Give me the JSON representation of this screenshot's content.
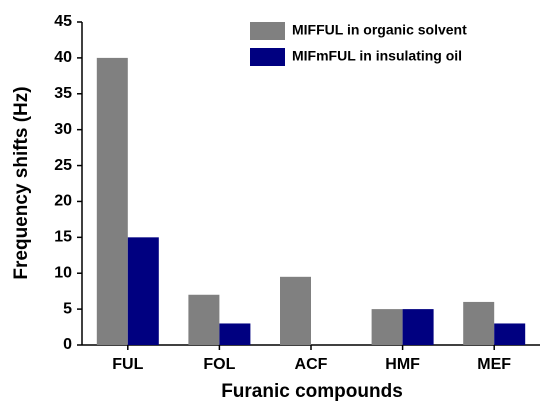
{
  "chart_data": {
    "type": "bar",
    "x_label": "Furanic compounds",
    "y_label": "Frequency shifts (Hz)",
    "categories": [
      "FUL",
      "FOL",
      "ACF",
      "HMF",
      "MEF"
    ],
    "series": [
      {
        "name": "MIFFUL in organic solvent",
        "color": "#808080",
        "values": [
          40,
          7,
          9.5,
          5,
          6
        ]
      },
      {
        "name": "MIFmFUL in insulating oil",
        "color": "#000080",
        "values": [
          15,
          3,
          null,
          5,
          3
        ]
      }
    ],
    "ylim": [
      0,
      45
    ],
    "yticks": [
      0,
      5,
      10,
      15,
      20,
      25,
      30,
      35,
      40,
      45
    ],
    "legend": "upper right"
  }
}
